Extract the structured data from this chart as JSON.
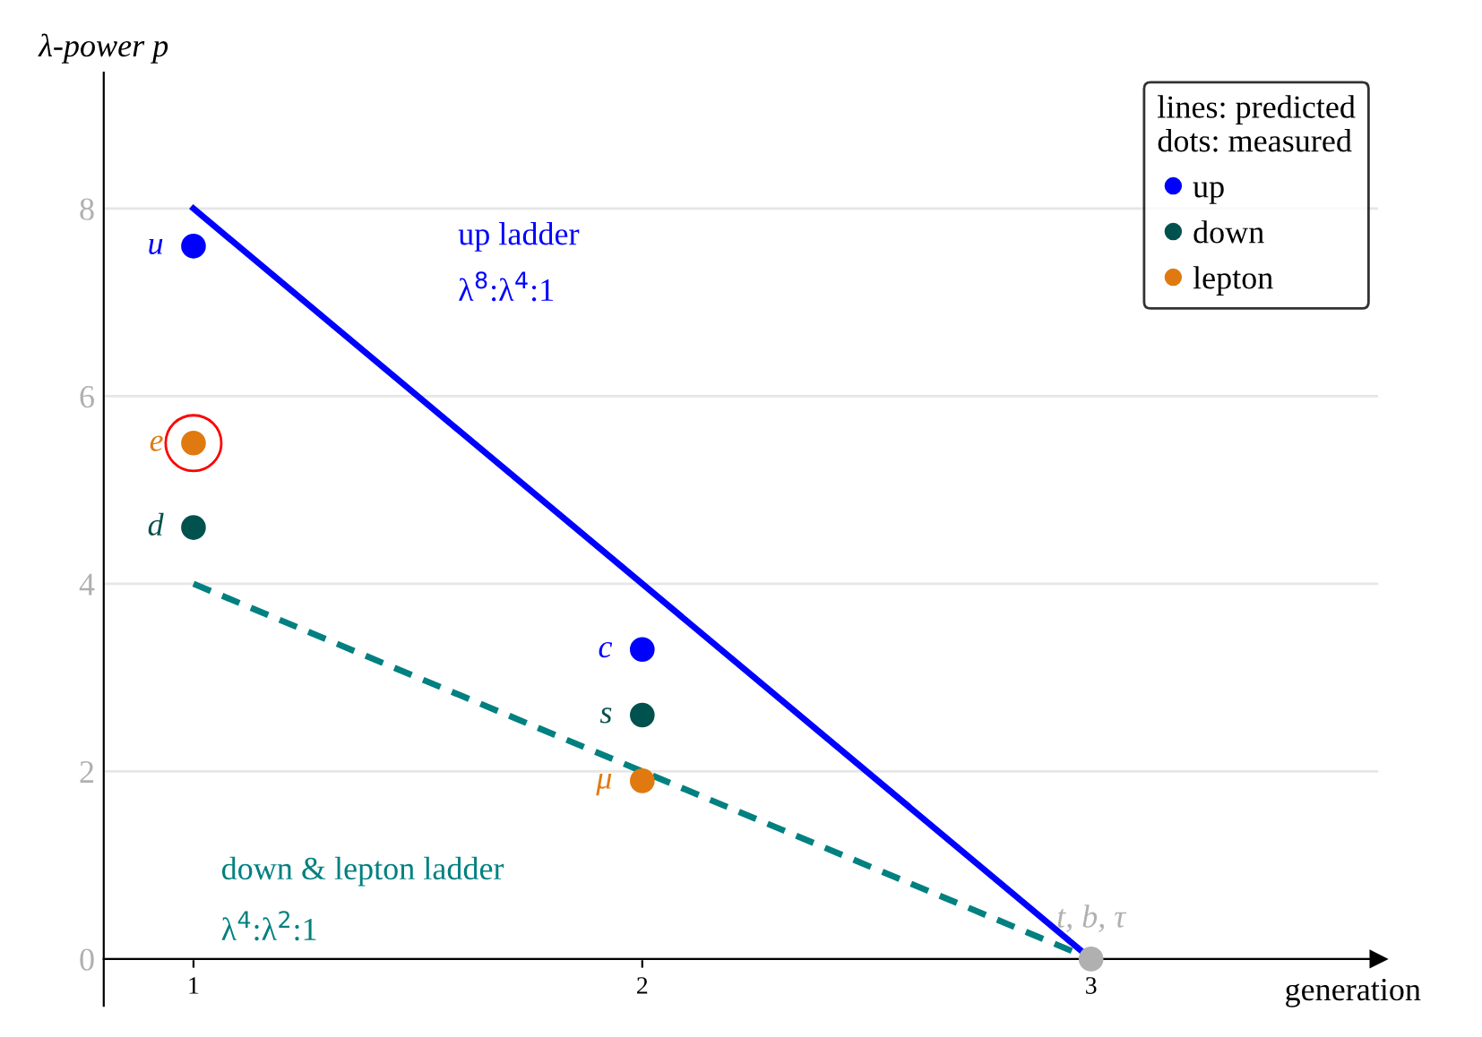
{
  "chart_data": {
    "type": "scatter",
    "xlabel": "generation",
    "ylabel": "λ-power p",
    "xlim": [
      0.8,
      3.64
    ],
    "ylim": [
      -0.5,
      9.45
    ],
    "xticks": [
      1,
      2,
      3
    ],
    "yticks": [
      0,
      2,
      4,
      6,
      8
    ],
    "grid": "y",
    "legend": "top right",
    "legend_title": "lines: predicted\ndots: measured",
    "series": [
      {
        "type": "line",
        "x": [
          1,
          3
        ],
        "values": [
          8,
          0
        ],
        "color": "#0000ff",
        "line_style": "solid",
        "marker": "none"
      },
      {
        "type": "line",
        "x": [
          1,
          3
        ],
        "values": [
          4,
          0
        ],
        "color": "#008080",
        "line_style": "dashed",
        "marker": "none"
      },
      {
        "name": "up",
        "x": [
          1,
          2
        ],
        "values": [
          7.6,
          3.3
        ],
        "color": "#0000ff",
        "marker": "circle",
        "value_labels": [
          "u",
          "c"
        ]
      },
      {
        "name": "down",
        "x": [
          1,
          2
        ],
        "values": [
          4.6,
          2.6
        ],
        "color": "#00524f",
        "marker": "circle",
        "value_labels": [
          "d",
          "s"
        ]
      },
      {
        "name": "lepton",
        "x": [
          1,
          2
        ],
        "values": [
          5.5,
          1.9
        ],
        "color": "#e07a10",
        "marker": "circle",
        "value_labels": [
          "e",
          "μ"
        ]
      },
      {
        "x": [
          3
        ],
        "values": [
          0
        ],
        "color": "#b0b0b0",
        "marker": "circle",
        "value_labels": [
          "t, b, τ"
        ]
      }
    ],
    "annotations": [
      "up ladder",
      "λ$^{8}$:λ$^{4}$:1",
      "down & lepton ladder",
      "λ$^{4}$:λ$^{2}$:1"
    ]
  }
}
